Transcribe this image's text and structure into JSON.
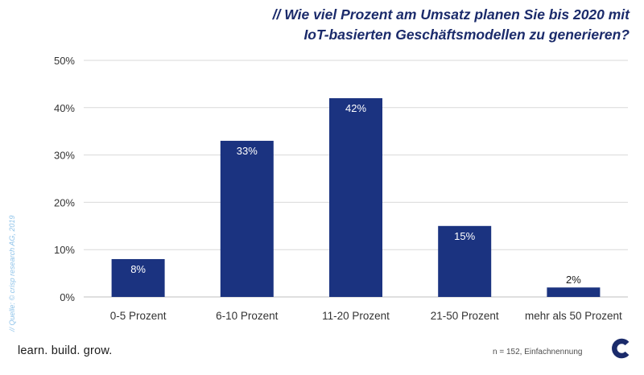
{
  "header": {
    "title_line1": "// Wie viel Prozent am Umsatz planen Sie bis 2020 mit",
    "title_line2": "IoT-basierten Geschäftsmodellen zu generieren?"
  },
  "chart_data": {
    "type": "bar",
    "title": "// Wie viel Prozent am Umsatz planen Sie bis 2020 mit IoT-basierten Geschäftsmodellen zu generieren?",
    "categories": [
      "0-5 Prozent",
      "6-10 Prozent",
      "11-20 Prozent",
      "21-50 Prozent",
      "mehr als 50 Prozent"
    ],
    "values": [
      8,
      33,
      42,
      15,
      2
    ],
    "value_labels": [
      "8%",
      "33%",
      "42%",
      "15%",
      "2%"
    ],
    "ylim": [
      0,
      50
    ],
    "yticks": [
      0,
      10,
      20,
      30,
      40,
      50
    ],
    "ytick_labels": [
      "0%",
      "10%",
      "20%",
      "30%",
      "40%",
      "50%"
    ],
    "xlabel": "",
    "ylabel": "",
    "grid": true,
    "bar_color": "#1b3380",
    "grid_color": "#d9d9d9"
  },
  "source": "// Quelle: © crisp research AG, 2019",
  "footer": {
    "tagline": "learn. build. grow.",
    "footnote": "n = 152, Einfachnennung"
  },
  "colors": {
    "title": "#1b2b6b",
    "bar": "#1b3380",
    "source": "#8fc3e9"
  },
  "logo": {
    "icon": "c-logo-icon"
  }
}
